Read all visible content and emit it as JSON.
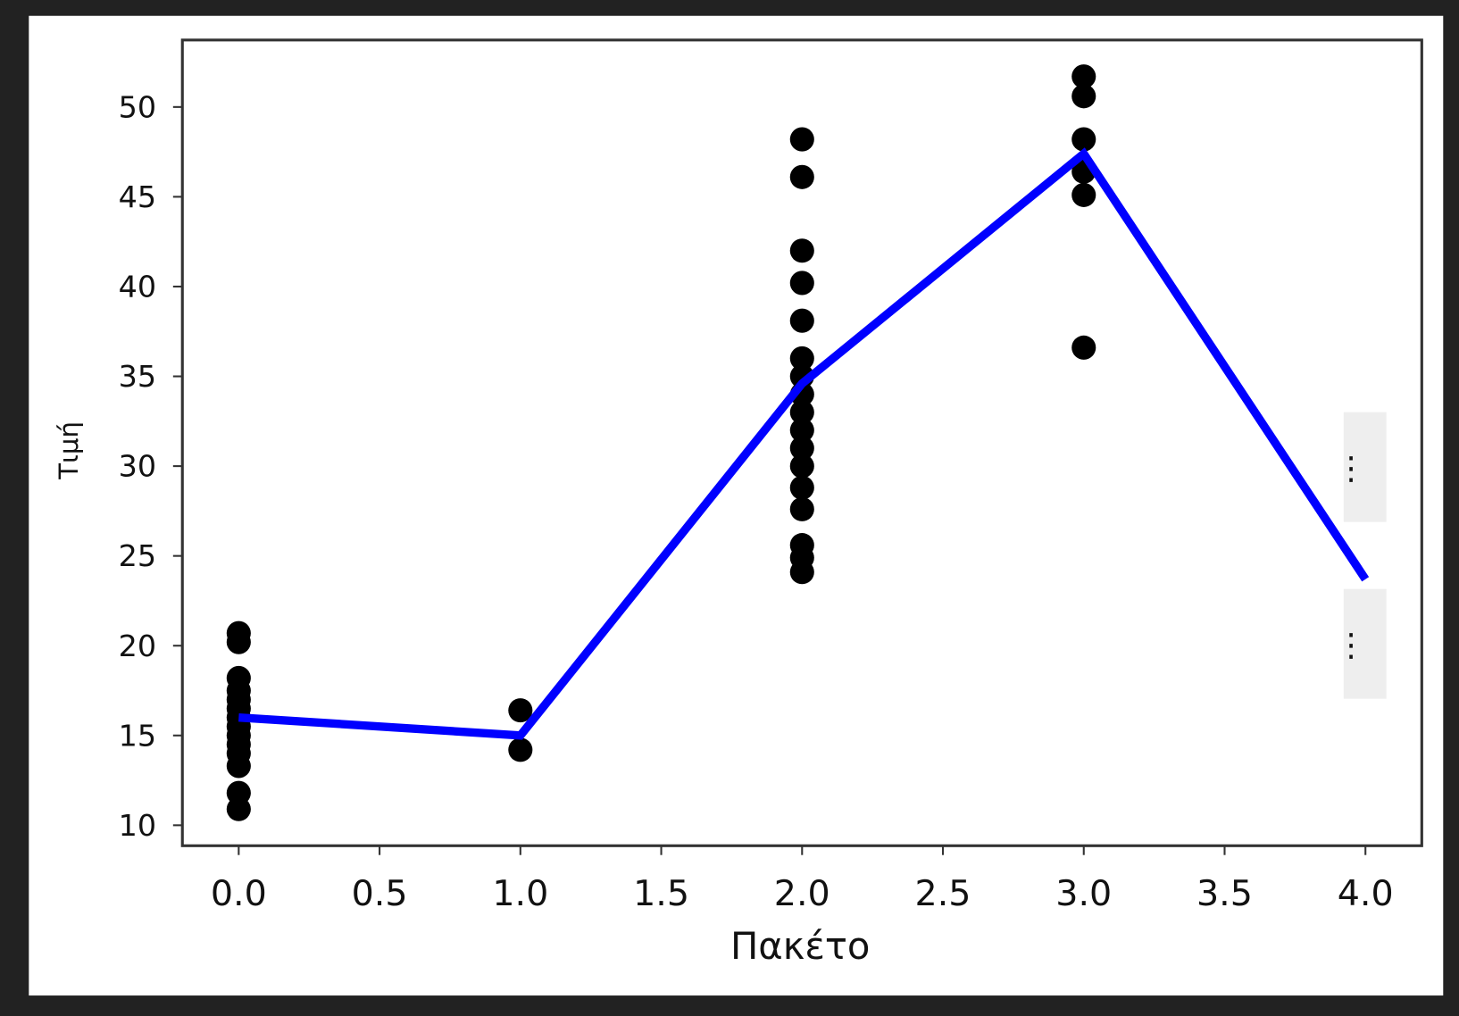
{
  "chart_data": {
    "type": "scatter",
    "x_label": "Πακέτο",
    "y_label": "Τιμή",
    "xlim": [
      -0.2,
      4.2
    ],
    "ylim": [
      8.86,
      53.73
    ],
    "xticks": [
      {
        "value": 0,
        "label": "0.0"
      },
      {
        "value": 0.5,
        "label": "0.5"
      },
      {
        "value": 1,
        "label": "1.0"
      },
      {
        "value": 1.5,
        "label": "1.5"
      },
      {
        "value": 2,
        "label": "2.0"
      },
      {
        "value": 2.5,
        "label": "2.5"
      },
      {
        "value": 3,
        "label": "3.0"
      },
      {
        "value": 3.5,
        "label": "3.5"
      },
      {
        "value": 4,
        "label": "4.0"
      }
    ],
    "yticks": [
      10,
      15,
      20,
      25,
      30,
      35,
      40,
      45,
      50
    ],
    "series": [
      {
        "kind": "points",
        "color": "#000000",
        "x": [
          0,
          0,
          0,
          0,
          0,
          0,
          0,
          0,
          0,
          0,
          0,
          0,
          0,
          0,
          1,
          1,
          2,
          2,
          2,
          2,
          2,
          2,
          2,
          2,
          2,
          2,
          2,
          2,
          2,
          2,
          2,
          2,
          2,
          3,
          3,
          3,
          3,
          3,
          3
        ],
        "values": [
          20.7,
          20.2,
          18.2,
          17.5,
          17,
          16.5,
          16,
          15.5,
          15,
          14.5,
          14,
          13.3,
          11.8,
          10.9,
          16.4,
          14.2,
          48.2,
          46.1,
          42,
          40.2,
          38.1,
          36,
          35,
          34,
          33,
          32,
          31,
          30,
          28.8,
          27.6,
          25.6,
          24.9,
          24.1,
          51.7,
          50.6,
          48.2,
          46.4,
          45.1,
          36.6
        ]
      },
      {
        "kind": "line",
        "color": "#0000ff",
        "x": [
          0,
          1,
          2,
          3,
          4
        ],
        "values": [
          16,
          15,
          34.6,
          47.4,
          23.7
        ]
      }
    ],
    "annotations": [
      "⋮",
      "⋮"
    ]
  }
}
